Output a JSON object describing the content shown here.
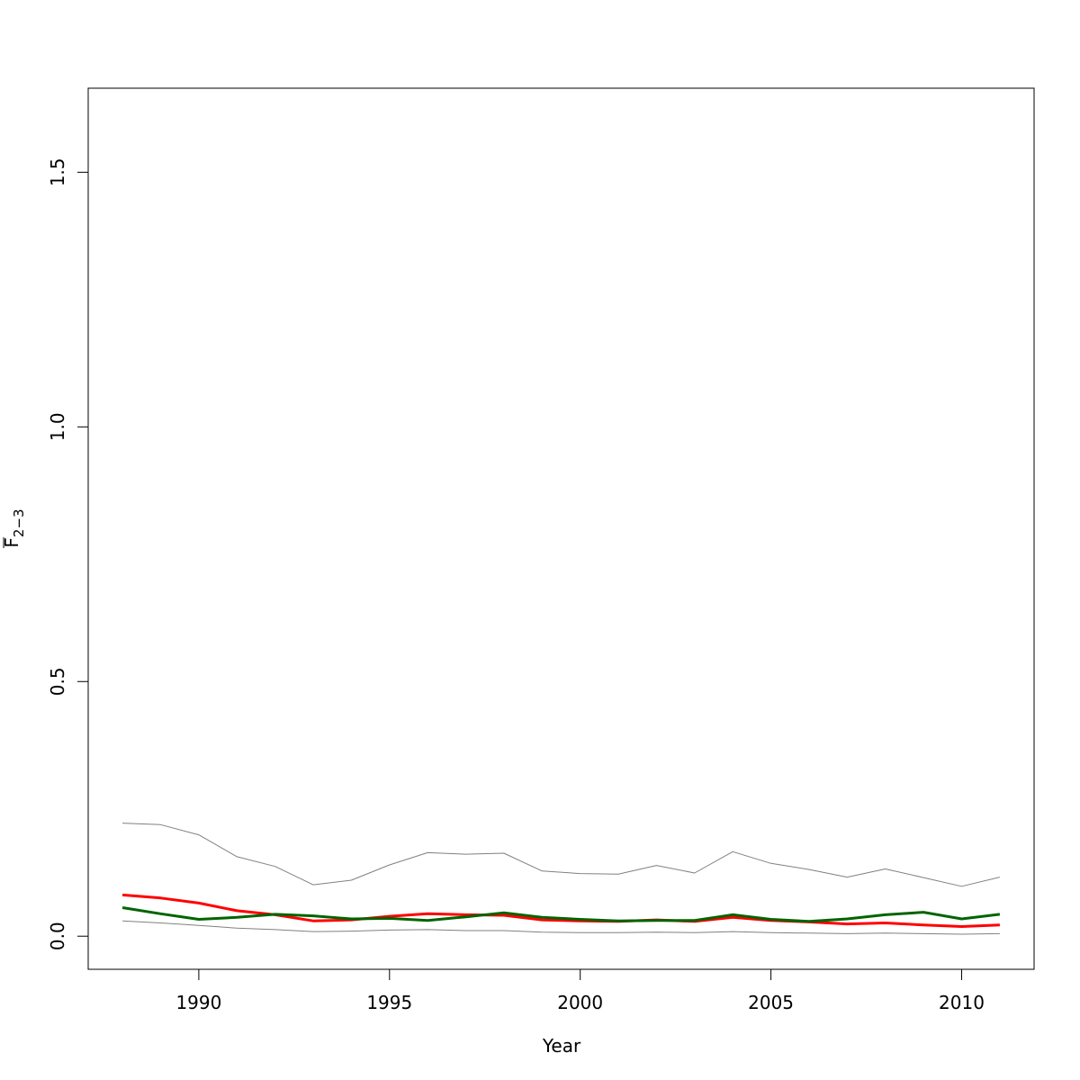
{
  "chart_data": {
    "type": "line",
    "xlabel": "Year",
    "ylabel": "F",
    "ylabel_subscript": "2−3",
    "xlim": [
      1987.1,
      2011.9
    ],
    "ylim": [
      -0.065,
      1.665
    ],
    "x_ticks": [
      1990,
      1995,
      2000,
      2005,
      2010
    ],
    "y_ticks": [
      0.0,
      0.5,
      1.0,
      1.5
    ],
    "x_tick_labels": [
      "1990",
      "1995",
      "2000",
      "2005",
      "2010"
    ],
    "y_tick_labels": [
      "0.0",
      "0.5",
      "1.0",
      "1.5"
    ],
    "grid": false,
    "x": [
      1988,
      1989,
      1990,
      1991,
      1992,
      1993,
      1994,
      1995,
      1996,
      1997,
      1998,
      1999,
      2000,
      2001,
      2002,
      2003,
      2004,
      2005,
      2006,
      2007,
      2008,
      2009,
      2010,
      2011
    ],
    "series": [
      {
        "color": "#808080",
        "width": 1,
        "values": [
          0.222,
          0.219,
          0.199,
          0.156,
          0.137,
          0.101,
          0.11,
          0.14,
          0.164,
          0.161,
          0.163,
          0.128,
          0.123,
          0.122,
          0.139,
          0.124,
          0.166,
          0.143,
          0.131,
          0.116,
          0.132,
          0.115,
          0.098,
          0.116
        ]
      },
      {
        "color": "#808080",
        "width": 1,
        "values": [
          0.03,
          0.026,
          0.021,
          0.016,
          0.013,
          0.009,
          0.01,
          0.012,
          0.013,
          0.011,
          0.011,
          0.008,
          0.007,
          0.007,
          0.008,
          0.007,
          0.009,
          0.007,
          0.006,
          0.005,
          0.006,
          0.005,
          0.004,
          0.005
        ]
      },
      {
        "color": "#ff0000",
        "width": 3,
        "values": [
          0.081,
          0.075,
          0.065,
          0.05,
          0.042,
          0.03,
          0.032,
          0.039,
          0.044,
          0.042,
          0.041,
          0.032,
          0.03,
          0.029,
          0.032,
          0.029,
          0.037,
          0.031,
          0.028,
          0.024,
          0.026,
          0.022,
          0.019,
          0.022
        ]
      },
      {
        "color": "#006400",
        "width": 3,
        "values": [
          0.056,
          0.044,
          0.033,
          0.037,
          0.043,
          0.04,
          0.034,
          0.035,
          0.031,
          0.038,
          0.046,
          0.037,
          0.033,
          0.03,
          0.031,
          0.031,
          0.042,
          0.033,
          0.029,
          0.034,
          0.042,
          0.047,
          0.034,
          0.043
        ]
      }
    ]
  }
}
